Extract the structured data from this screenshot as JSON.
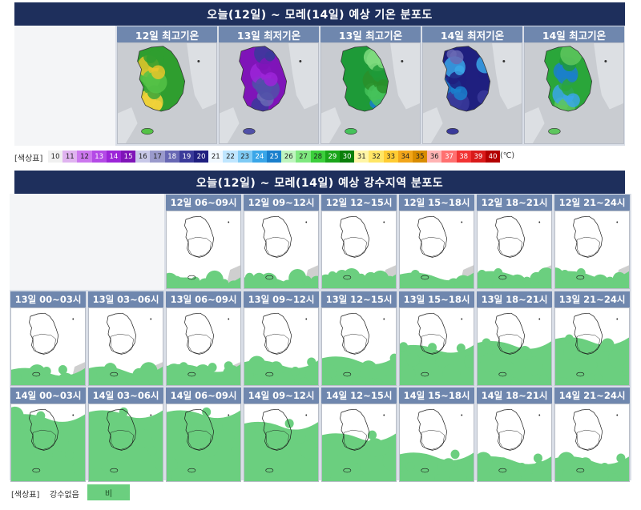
{
  "temp": {
    "title": "오늘(12일) ~ 모레(14일) 예상 기온 분포도",
    "maps": [
      {
        "label": "12일 최고기온",
        "palette": "warm"
      },
      {
        "label": "13일 최저기온",
        "palette": "cold"
      },
      {
        "label": "13일 최고기온",
        "palette": "warm2"
      },
      {
        "label": "14일 최저기온",
        "palette": "cold2"
      },
      {
        "label": "14일 최고기온",
        "palette": "warm3"
      }
    ],
    "legend_label": "[색상표]",
    "unit": "(℃)",
    "scale": [
      {
        "v": "10",
        "c": "#f0f0f0"
      },
      {
        "v": "11",
        "c": "#e0b3f0"
      },
      {
        "v": "12",
        "c": "#cc77ee"
      },
      {
        "v": "13",
        "c": "#b44ae6"
      },
      {
        "v": "14",
        "c": "#9c24d8"
      },
      {
        "v": "15",
        "c": "#7f14b8"
      },
      {
        "v": "16",
        "c": "#c8c8e8"
      },
      {
        "v": "17",
        "c": "#9a9acc"
      },
      {
        "v": "18",
        "c": "#6868b4"
      },
      {
        "v": "19",
        "c": "#3a3a9a"
      },
      {
        "v": "20",
        "c": "#1f1f7f"
      },
      {
        "v": "21",
        "c": "#f0f8ff"
      },
      {
        "v": "22",
        "c": "#bfe6ff"
      },
      {
        "v": "23",
        "c": "#7fcbf5"
      },
      {
        "v": "24",
        "c": "#3aa6e8"
      },
      {
        "v": "25",
        "c": "#1a7fcc"
      },
      {
        "v": "26",
        "c": "#bff5bf"
      },
      {
        "v": "27",
        "c": "#7fe87f"
      },
      {
        "v": "28",
        "c": "#3ccf3c"
      },
      {
        "v": "29",
        "c": "#1aa61a"
      },
      {
        "v": "30",
        "c": "#0a7f0a"
      },
      {
        "v": "31",
        "c": "#fff5a6"
      },
      {
        "v": "32",
        "c": "#ffe666"
      },
      {
        "v": "33",
        "c": "#ffcc33"
      },
      {
        "v": "34",
        "c": "#f2a61a"
      },
      {
        "v": "35",
        "c": "#d98c00"
      },
      {
        "v": "36",
        "c": "#ffb3b3"
      },
      {
        "v": "37",
        "c": "#ff7070"
      },
      {
        "v": "38",
        "c": "#f23333"
      },
      {
        "v": "39",
        "c": "#d91a1a"
      },
      {
        "v": "40",
        "c": "#b30000"
      }
    ]
  },
  "rain": {
    "title": "오늘(12일) ~ 모레(14일) 예상 강수지역 분포도",
    "rows": [
      [
        "12일 06~09시",
        "12일 09~12시",
        "12일 12~15시",
        "12일 15~18시",
        "12일 18~21시",
        "12일 21~24시"
      ],
      [
        "13일 00~03시",
        "13일 03~06시",
        "13일 06~09시",
        "13일 09~12시",
        "13일 12~15시",
        "13일 15~18시",
        "13일 18~21시",
        "13일 21~24시"
      ],
      [
        "14일 00~03시",
        "14일 03~06시",
        "14일 06~09시",
        "14일 09~12시",
        "14일 12~15시",
        "14일 15~18시",
        "14일 18~21시",
        "14일 21~24시"
      ]
    ],
    "coverage": [
      [
        0.12,
        0.14,
        0.16,
        0.18,
        0.2,
        0.2
      ],
      [
        0.2,
        0.22,
        0.25,
        0.3,
        0.35,
        0.5,
        0.55,
        0.6
      ],
      [
        0.85,
        0.9,
        0.9,
        0.75,
        0.6,
        0.35,
        0.3,
        0.3
      ]
    ],
    "legend_label": "[색상표]",
    "no_rain": "강수없음",
    "rain": "비"
  }
}
